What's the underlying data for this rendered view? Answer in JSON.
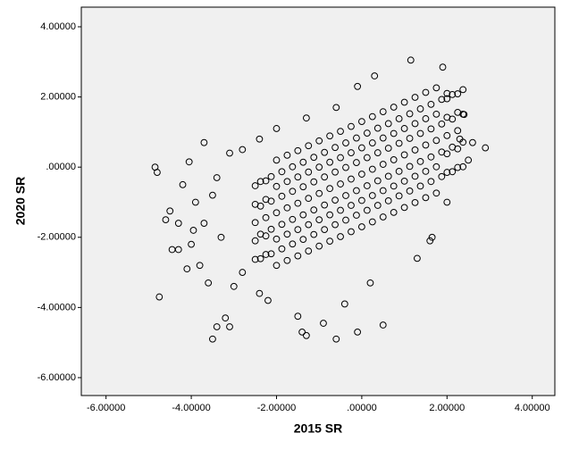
{
  "chart_data": {
    "type": "scatter",
    "x_label": "2015 SR",
    "y_label": "2020 SR",
    "xlim": [
      -6.58,
      4.53
    ],
    "ylim": [
      -6.51,
      4.56
    ],
    "xticks": [
      {
        "value": -6,
        "label": "-6.00000"
      },
      {
        "value": -4,
        "label": "-4.00000"
      },
      {
        "value": -2,
        "label": "-2.00000"
      },
      {
        "value": 0,
        "label": ".00000"
      },
      {
        "value": 2,
        "label": "2.00000"
      },
      {
        "value": 4,
        "label": "4.00000"
      }
    ],
    "yticks": [
      {
        "value": -6,
        "label": "-6.00000"
      },
      {
        "value": -4,
        "label": "-4.00000"
      },
      {
        "value": -2,
        "label": "-2.00000"
      },
      {
        "value": 0,
        "label": ".00000"
      },
      {
        "value": 2,
        "label": "2.00000"
      },
      {
        "value": 4,
        "label": "4.00000"
      }
    ],
    "grid": false,
    "background": "#f0f0f0",
    "series": [
      {
        "color": "#000000",
        "x": [
          -2.5,
          -2.5,
          -2.5,
          -2.5,
          -2.5,
          -2.25,
          -2.25,
          -2.25,
          -2.25,
          -2.25,
          -2,
          -2,
          -2,
          -2,
          -2,
          -1.75,
          -1.75,
          -1.75,
          -1.75,
          -1.75,
          -1.5,
          -1.5,
          -1.5,
          -1.5,
          -1.5,
          -1.25,
          -1.25,
          -1.25,
          -1.25,
          -1.25,
          -1,
          -1,
          -1,
          -1,
          -1,
          -0.75,
          -0.75,
          -0.75,
          -0.75,
          -0.75,
          -0.5,
          -0.5,
          -0.5,
          -0.5,
          -0.5,
          -0.25,
          -0.25,
          -0.25,
          -0.25,
          -0.25,
          0,
          0,
          0,
          0,
          0,
          0.25,
          0.25,
          0.25,
          0.25,
          0.25,
          0.5,
          0.5,
          0.5,
          0.5,
          0.5,
          0.75,
          0.75,
          0.75,
          0.75,
          0.75,
          1,
          1,
          1,
          1,
          1,
          1.25,
          1.25,
          1.25,
          1.25,
          1.25,
          1.5,
          1.5,
          1.5,
          1.5,
          1.5,
          1.75,
          1.75,
          1.75,
          1.75,
          1.75,
          2,
          2,
          2,
          2,
          2,
          2.25,
          2.25,
          2.25,
          2.25,
          2.25,
          -2.375,
          -2.375,
          -2.375,
          -2.375,
          -2.125,
          -2.125,
          -2.125,
          -2.125,
          -1.875,
          -1.875,
          -1.875,
          -1.875,
          -1.625,
          -1.625,
          -1.625,
          -1.625,
          -1.375,
          -1.375,
          -1.375,
          -1.375,
          -1.125,
          -1.125,
          -1.125,
          -1.125,
          -0.875,
          -0.875,
          -0.875,
          -0.875,
          -0.625,
          -0.625,
          -0.625,
          -0.625,
          -0.375,
          -0.375,
          -0.375,
          -0.375,
          -0.125,
          -0.125,
          -0.125,
          -0.125,
          0.125,
          0.125,
          0.125,
          0.125,
          0.375,
          0.375,
          0.375,
          0.375,
          0.625,
          0.625,
          0.625,
          0.625,
          0.875,
          0.875,
          0.875,
          0.875,
          1.125,
          1.125,
          1.125,
          1.125,
          1.375,
          1.375,
          1.375,
          1.375,
          1.625,
          1.625,
          1.625,
          1.625,
          1.875,
          1.875,
          1.875,
          1.875,
          2.125,
          2.125,
          2.125,
          2.125,
          2.375,
          2.375,
          2.375,
          2.375,
          -4.85,
          -4.8,
          -4.75,
          -4.6,
          -4.5,
          -4.45,
          -4.3,
          -4.2,
          -4.1,
          -4.05,
          -3.95,
          -3.8,
          -3.7,
          -3.6,
          -3.5,
          -3.4,
          -3.2,
          -3.1,
          -3.3,
          -3.5,
          -3.9,
          -4.3,
          -4,
          -3.7,
          -3.4,
          -3,
          -2.8,
          -2.4,
          -2.2,
          -1.5,
          -1.4,
          -1.3,
          -0.9,
          -0.6,
          -0.1,
          0.5,
          -0.4,
          0.2,
          1.3,
          1.6,
          1.65,
          2,
          2.3,
          2.5,
          2.6,
          2.9,
          2.4,
          2,
          1.9,
          1.15,
          0.3,
          -0.1,
          -0.6,
          -1.3,
          -2,
          -2.4,
          -2.8,
          -3.1
        ],
        "y": [
          -2.63,
          -2.1,
          -1.58,
          -1.06,
          -0.53,
          -2.49,
          -1.96,
          -1.44,
          -0.92,
          -0.39,
          -2.8,
          -2.05,
          -1.3,
          -0.55,
          0.2,
          -2.66,
          -1.91,
          -1.16,
          -0.41,
          0.34,
          -2.53,
          -1.78,
          -1.03,
          -0.28,
          0.47,
          -2.39,
          -1.64,
          -0.89,
          -0.14,
          0.61,
          -2.25,
          -1.5,
          -0.75,
          0,
          0.75,
          -2.11,
          -1.36,
          -0.61,
          0.14,
          0.89,
          -1.98,
          -1.23,
          -0.48,
          0.27,
          1.02,
          -1.84,
          -1.09,
          -0.34,
          0.41,
          1.16,
          -1.7,
          -0.95,
          -0.2,
          0.55,
          1.3,
          -1.56,
          -0.81,
          -0.06,
          0.69,
          1.44,
          -1.42,
          -0.67,
          0.08,
          0.83,
          1.58,
          -1.29,
          -0.54,
          0.21,
          0.96,
          1.71,
          -1.15,
          -0.4,
          0.35,
          1.1,
          1.85,
          -1.01,
          -0.26,
          0.49,
          1.24,
          1.99,
          -0.87,
          -0.12,
          0.63,
          1.38,
          2.13,
          -0.74,
          0.01,
          0.76,
          1.51,
          2.26,
          -0.15,
          0.38,
          0.9,
          1.42,
          1.95,
          -0.01,
          0.52,
          1.04,
          1.56,
          2.09,
          -2.61,
          -1.91,
          -1.11,
          -0.41,
          -2.47,
          -1.77,
          -0.97,
          -0.27,
          -2.33,
          -1.63,
          -0.83,
          -0.13,
          -2.19,
          -1.49,
          -0.69,
          0.01,
          -2.06,
          -1.36,
          -0.56,
          0.14,
          -1.92,
          -1.22,
          -0.42,
          0.28,
          -1.78,
          -1.08,
          -0.28,
          0.42,
          -1.64,
          -0.94,
          -0.14,
          0.56,
          -1.51,
          -0.81,
          -0.01,
          0.69,
          -1.37,
          -0.67,
          0.13,
          0.83,
          -1.23,
          -0.53,
          0.27,
          0.97,
          -1.09,
          -0.39,
          0.41,
          1.11,
          -0.96,
          -0.26,
          0.54,
          1.24,
          -0.82,
          -0.12,
          0.68,
          1.38,
          -0.68,
          0.02,
          0.82,
          1.52,
          -0.54,
          0.16,
          0.96,
          1.66,
          -0.41,
          0.29,
          1.09,
          1.79,
          -0.27,
          0.43,
          1.23,
          1.93,
          -0.13,
          0.57,
          1.37,
          2.07,
          0.01,
          0.71,
          1.51,
          2.21,
          0,
          -0.15,
          -3.7,
          -1.5,
          -1.25,
          -2.35,
          -2.35,
          -0.5,
          -2.9,
          0.15,
          -1.8,
          -2.8,
          0.7,
          -3.3,
          -4.9,
          -4.55,
          -4.3,
          -4.55,
          -2,
          -0.8,
          -1,
          -1.6,
          -2.2,
          -1.6,
          -0.3,
          -3.4,
          -3,
          -3.6,
          -3.8,
          -4.25,
          -4.7,
          -4.8,
          -4.45,
          -4.9,
          -4.7,
          -4.5,
          -3.9,
          -3.3,
          -2.6,
          -2.1,
          -2,
          -1,
          0.8,
          0.2,
          0.7,
          0.55,
          1.5,
          2.1,
          2.85,
          3.05,
          2.6,
          2.3,
          1.7,
          1.4,
          1.1,
          0.8,
          0.5,
          0.4
        ]
      }
    ]
  }
}
